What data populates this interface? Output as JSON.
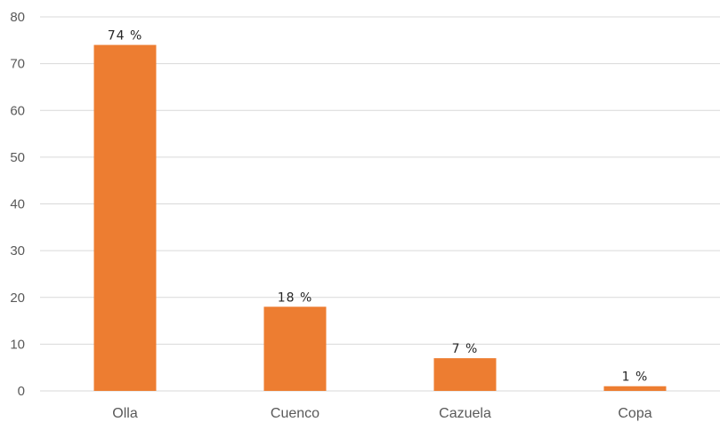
{
  "chart_data": {
    "type": "bar",
    "categories": [
      "Olla",
      "Cuenco",
      "Cazuela",
      "Copa"
    ],
    "values": [
      74,
      18,
      7,
      1
    ],
    "data_labels": [
      "74 %",
      "18 %",
      "7 %",
      "1 %"
    ],
    "y_ticks": [
      "0",
      "10",
      "20",
      "30",
      "40",
      "50",
      "60",
      "70",
      "80"
    ],
    "ylim": [
      0,
      80
    ],
    "grid": true,
    "colors": {
      "bar": "#ED7D31",
      "gridline": "#D9D9D9",
      "text": "#595959"
    }
  }
}
